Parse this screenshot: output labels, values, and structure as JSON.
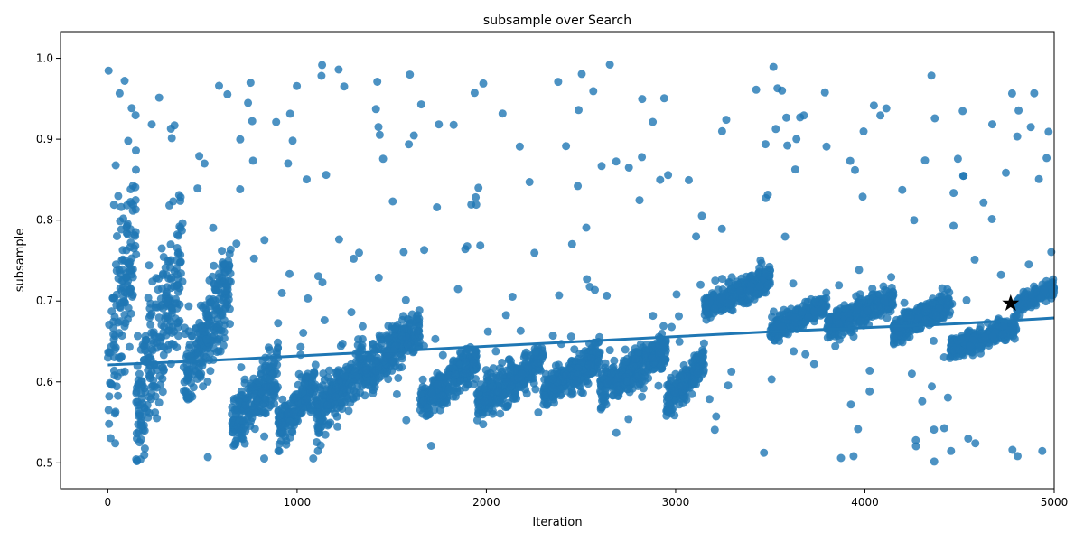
{
  "chart_data": {
    "type": "scatter",
    "title": "subsample over Search",
    "xlabel": "Iteration",
    "ylabel": "subsample",
    "xlim": [
      -250,
      5000
    ],
    "ylim": [
      0.468,
      1.033
    ],
    "xticks": [
      0,
      1000,
      2000,
      3000,
      4000,
      5000
    ],
    "yticks": [
      0.5,
      0.6,
      0.7,
      0.8,
      0.9,
      1.0
    ],
    "grid": false,
    "legend": "none",
    "colors": {
      "points": "#1f77b4",
      "trend": "#1f77b4",
      "best": "#000000"
    },
    "points_description": {
      "count_approx": 5000,
      "x_range": [
        0,
        5000
      ],
      "y_range": [
        0.5,
        1.0
      ]
    },
    "trend_line": {
      "x": [
        0,
        500,
        1000,
        1500,
        2000,
        2500,
        3000,
        3500,
        4000,
        4500,
        5000
      ],
      "y": [
        0.621,
        0.626,
        0.632,
        0.638,
        0.644,
        0.65,
        0.656,
        0.662,
        0.667,
        0.672,
        0.679
      ]
    },
    "best_point": {
      "x": 4770,
      "y": 0.697
    },
    "clusters": [
      {
        "x0": 0,
        "x1": 150,
        "center": 0.7,
        "spread": 0.19
      },
      {
        "x0": 150,
        "x1": 400,
        "center": 0.66,
        "spread": 0.16
      },
      {
        "x0": 400,
        "x1": 650,
        "center": 0.66,
        "spread": 0.1
      },
      {
        "x0": 650,
        "x1": 900,
        "center": 0.58,
        "spread": 0.06
      },
      {
        "x0": 900,
        "x1": 1100,
        "center": 0.57,
        "spread": 0.05
      },
      {
        "x0": 1100,
        "x1": 1350,
        "center": 0.59,
        "spread": 0.06
      },
      {
        "x0": 1350,
        "x1": 1650,
        "center": 0.64,
        "spread": 0.05
      },
      {
        "x0": 1650,
        "x1": 1950,
        "center": 0.6,
        "spread": 0.045
      },
      {
        "x0": 1950,
        "x1": 2300,
        "center": 0.6,
        "spread": 0.045
      },
      {
        "x0": 2300,
        "x1": 2600,
        "center": 0.61,
        "spread": 0.04
      },
      {
        "x0": 2600,
        "x1": 2950,
        "center": 0.615,
        "spread": 0.04
      },
      {
        "x0": 2950,
        "x1": 3150,
        "center": 0.6,
        "spread": 0.04
      },
      {
        "x0": 3150,
        "x1": 3500,
        "center": 0.71,
        "spread": 0.03
      },
      {
        "x0": 3500,
        "x1": 3800,
        "center": 0.68,
        "spread": 0.025
      },
      {
        "x0": 3800,
        "x1": 4150,
        "center": 0.685,
        "spread": 0.03
      },
      {
        "x0": 4150,
        "x1": 4450,
        "center": 0.68,
        "spread": 0.03
      },
      {
        "x0": 4450,
        "x1": 4800,
        "center": 0.655,
        "spread": 0.025
      },
      {
        "x0": 4800,
        "x1": 5000,
        "center": 0.705,
        "spread": 0.02
      }
    ]
  }
}
